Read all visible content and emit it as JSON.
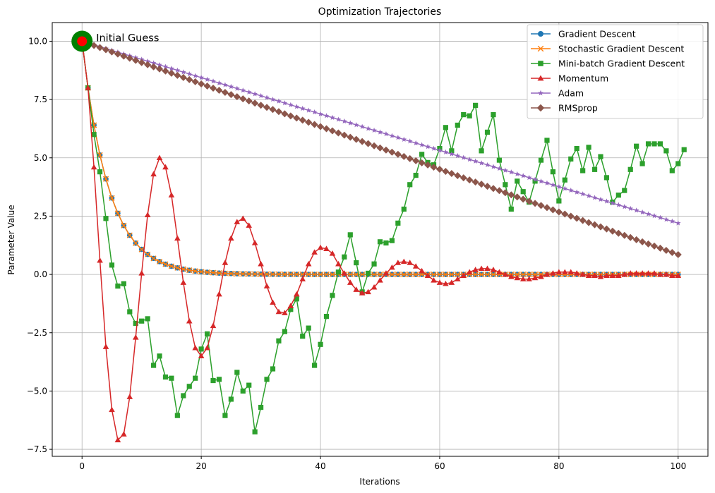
{
  "chart_data": {
    "type": "line",
    "title": "Optimization Trajectories",
    "xlabel": "Iterations",
    "ylabel": "Parameter Value",
    "xlim": [
      -5,
      105
    ],
    "ylim": [
      -7.8,
      10.8
    ],
    "xticks": [
      0,
      20,
      40,
      60,
      80,
      100
    ],
    "xtick_labels": [
      "0",
      "20",
      "40",
      "60",
      "80",
      "100"
    ],
    "yticks": [
      -7.5,
      -5.0,
      -2.5,
      0.0,
      2.5,
      5.0,
      7.5,
      10.0
    ],
    "ytick_labels": [
      "−7.5",
      "−5.0",
      "−2.5",
      "0.0",
      "2.5",
      "5.0",
      "7.5",
      "10.0"
    ],
    "grid": true,
    "legend_position": "top-right",
    "annotation": {
      "text": "Initial Guess",
      "x": 0,
      "y": 10.0
    },
    "series": [
      {
        "name": "Gradient Descent",
        "color": "#1f77b4",
        "marker": "circle",
        "decay": 0.8
      },
      {
        "name": "Stochastic Gradient Descent",
        "color": "#ff7f0e",
        "marker": "x",
        "decay": 0.8
      },
      {
        "name": "Mini-batch Gradient Descent",
        "color": "#2ca02c",
        "marker": "square",
        "y": [
          10.0,
          8.0,
          6.0,
          4.4,
          2.4,
          0.4,
          -0.5,
          -0.4,
          -1.6,
          -2.1,
          -2.0,
          -1.9,
          -3.9,
          -3.5,
          -4.4,
          -4.45,
          -6.05,
          -5.2,
          -4.8,
          -4.45,
          -3.2,
          -2.55,
          -4.55,
          -4.5,
          -6.05,
          -5.35,
          -4.2,
          -5.0,
          -4.75,
          -6.75,
          -5.7,
          -4.5,
          -4.05,
          -2.85,
          -2.45,
          -1.5,
          -1.05,
          -2.65,
          -2.3,
          -3.9,
          -3.0,
          -1.8,
          -0.9,
          0.1,
          0.75,
          1.7,
          0.5,
          -0.75,
          0.05,
          0.45,
          1.4,
          1.35,
          1.45,
          2.2,
          2.8,
          3.85,
          4.25,
          5.15,
          4.8,
          4.7,
          5.4,
          6.3,
          5.3,
          6.4,
          6.85,
          6.8,
          7.25,
          5.3,
          6.1,
          6.85,
          4.9,
          3.85,
          2.8,
          4.0,
          3.55,
          3.1,
          4.0,
          4.9,
          5.75,
          4.4,
          3.15,
          4.05,
          4.95,
          5.4,
          4.45,
          5.45,
          4.5,
          5.05,
          4.15,
          3.1,
          3.4,
          3.6,
          4.5,
          5.5,
          4.75,
          5.6,
          5.6,
          5.6,
          5.3,
          4.45,
          4.75,
          5.35
        ]
      },
      {
        "name": "Momentum",
        "color": "#d62728",
        "marker": "triangle",
        "y": [
          10.0,
          8.0,
          4.6,
          0.6,
          -3.1,
          -5.8,
          -7.1,
          -6.85,
          -5.25,
          -2.7,
          0.05,
          2.55,
          4.3,
          5.0,
          4.6,
          3.4,
          1.55,
          -0.35,
          -2.0,
          -3.15,
          -3.5,
          -3.15,
          -2.2,
          -0.85,
          0.5,
          1.55,
          2.25,
          2.4,
          2.1,
          1.35,
          0.45,
          -0.5,
          -1.2,
          -1.6,
          -1.65,
          -1.35,
          -0.85,
          -0.2,
          0.45,
          0.95,
          1.15,
          1.1,
          0.9,
          0.45,
          0.05,
          -0.35,
          -0.65,
          -0.8,
          -0.75,
          -0.55,
          -0.25,
          0.05,
          0.3,
          0.5,
          0.55,
          0.5,
          0.35,
          0.15,
          -0.05,
          -0.25,
          -0.35,
          -0.4,
          -0.35,
          -0.2,
          -0.05,
          0.1,
          0.2,
          0.25,
          0.25,
          0.2,
          0.1,
          0.0,
          -0.1,
          -0.15,
          -0.2,
          -0.2,
          -0.15,
          -0.1,
          0.0,
          0.05,
          0.1,
          0.1,
          0.1,
          0.05,
          0.0,
          -0.05,
          -0.05,
          -0.1,
          -0.05,
          -0.05,
          -0.05,
          0.0,
          0.05,
          0.05,
          0.05,
          0.05,
          0.05,
          0.0,
          0.0,
          -0.05,
          -0.05
        ]
      },
      {
        "name": "Adam",
        "color": "#9467bd",
        "marker": "star",
        "start": 10.0,
        "end": 2.2
      },
      {
        "name": "RMSprop",
        "color": "#8c564b",
        "marker": "diamond",
        "start": 10.0,
        "end": 0.85
      }
    ]
  }
}
